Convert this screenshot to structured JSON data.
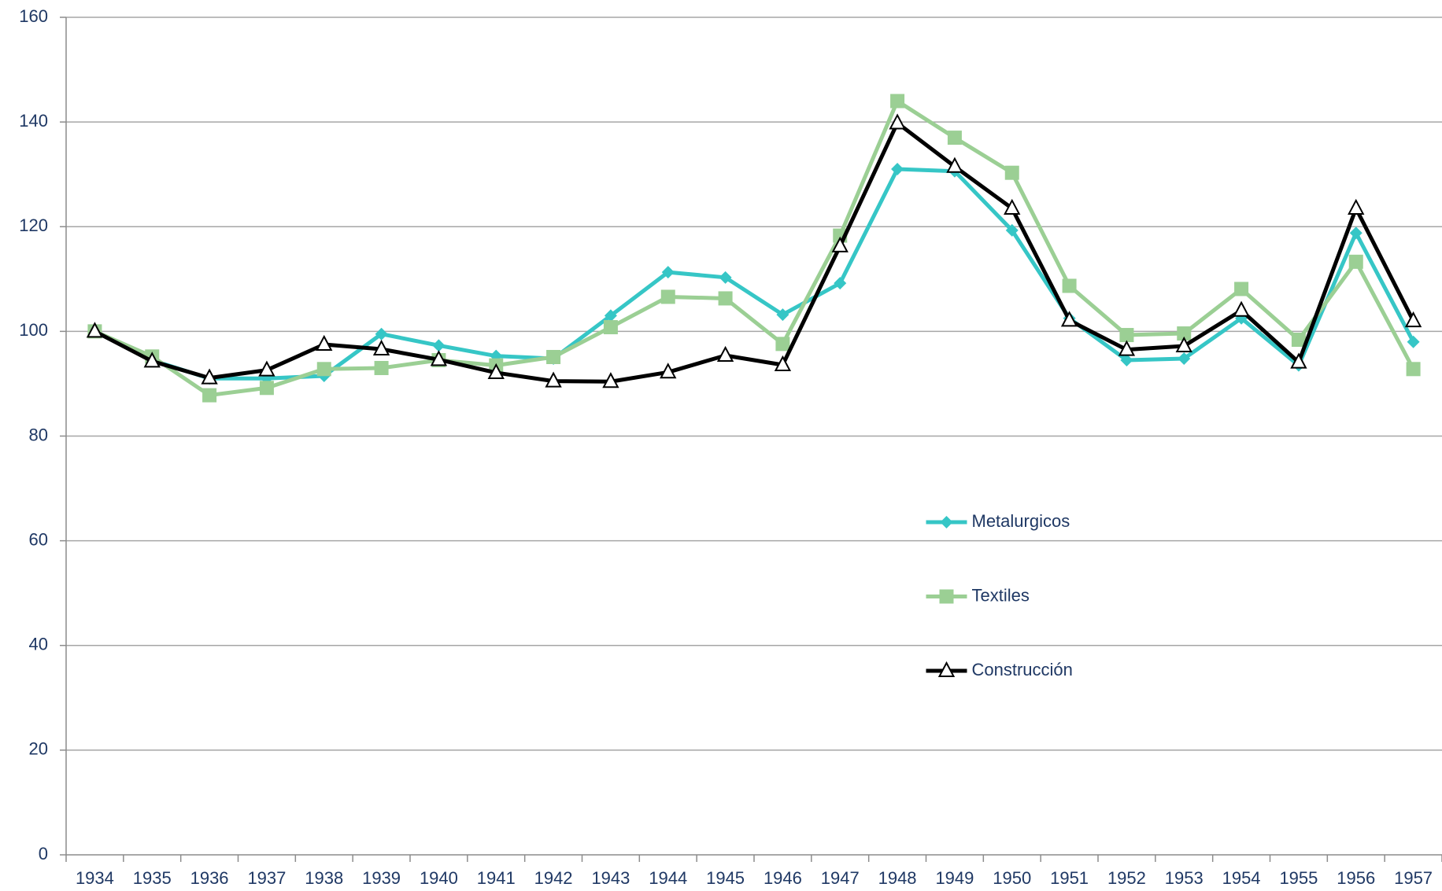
{
  "chart_data": {
    "type": "line",
    "categories": [
      "1934",
      "1935",
      "1936",
      "1937",
      "1938",
      "1939",
      "1940",
      "1941",
      "1942",
      "1943",
      "1944",
      "1945",
      "1946",
      "1947",
      "1948",
      "1949",
      "1950",
      "1951",
      "1952",
      "1953",
      "1954",
      "1955",
      "1956",
      "1957"
    ],
    "series": [
      {
        "name": "Metalurgicos",
        "color": "#36c6c6",
        "marker": "diamond",
        "values": [
          100,
          94.5,
          91,
          91,
          91.5,
          99.5,
          97.3,
          95.3,
          94.8,
          103,
          111.3,
          110.3,
          103.2,
          109.2,
          131,
          130.6,
          119.3,
          102.5,
          94.5,
          94.8,
          102.5,
          93.5,
          118.8,
          98
        ]
      },
      {
        "name": "Textiles",
        "color": "#9bcf94",
        "marker": "square",
        "values": [
          100,
          95.2,
          87.8,
          89.2,
          92.8,
          93,
          94.5,
          93.5,
          95.1,
          100.8,
          106.6,
          106.3,
          97.6,
          118.3,
          144,
          137,
          130.3,
          108.7,
          99.3,
          99.6,
          108.1,
          98.4,
          113.3,
          92.8
        ]
      },
      {
        "name": "Construcción",
        "color": "#000000",
        "marker": "triangle",
        "values": [
          100,
          94.3,
          91.1,
          92.6,
          97.5,
          96.6,
          94.6,
          92.1,
          90.5,
          90.4,
          92.2,
          95.4,
          93.6,
          116.3,
          139.8,
          131.5,
          123.5,
          102.1,
          96.5,
          97.2,
          104,
          94.1,
          123.5,
          102
        ]
      }
    ],
    "ylim": [
      0,
      160
    ],
    "yticks": [
      0,
      20,
      40,
      60,
      80,
      100,
      120,
      140,
      160
    ],
    "grid": true,
    "legend": "center"
  }
}
